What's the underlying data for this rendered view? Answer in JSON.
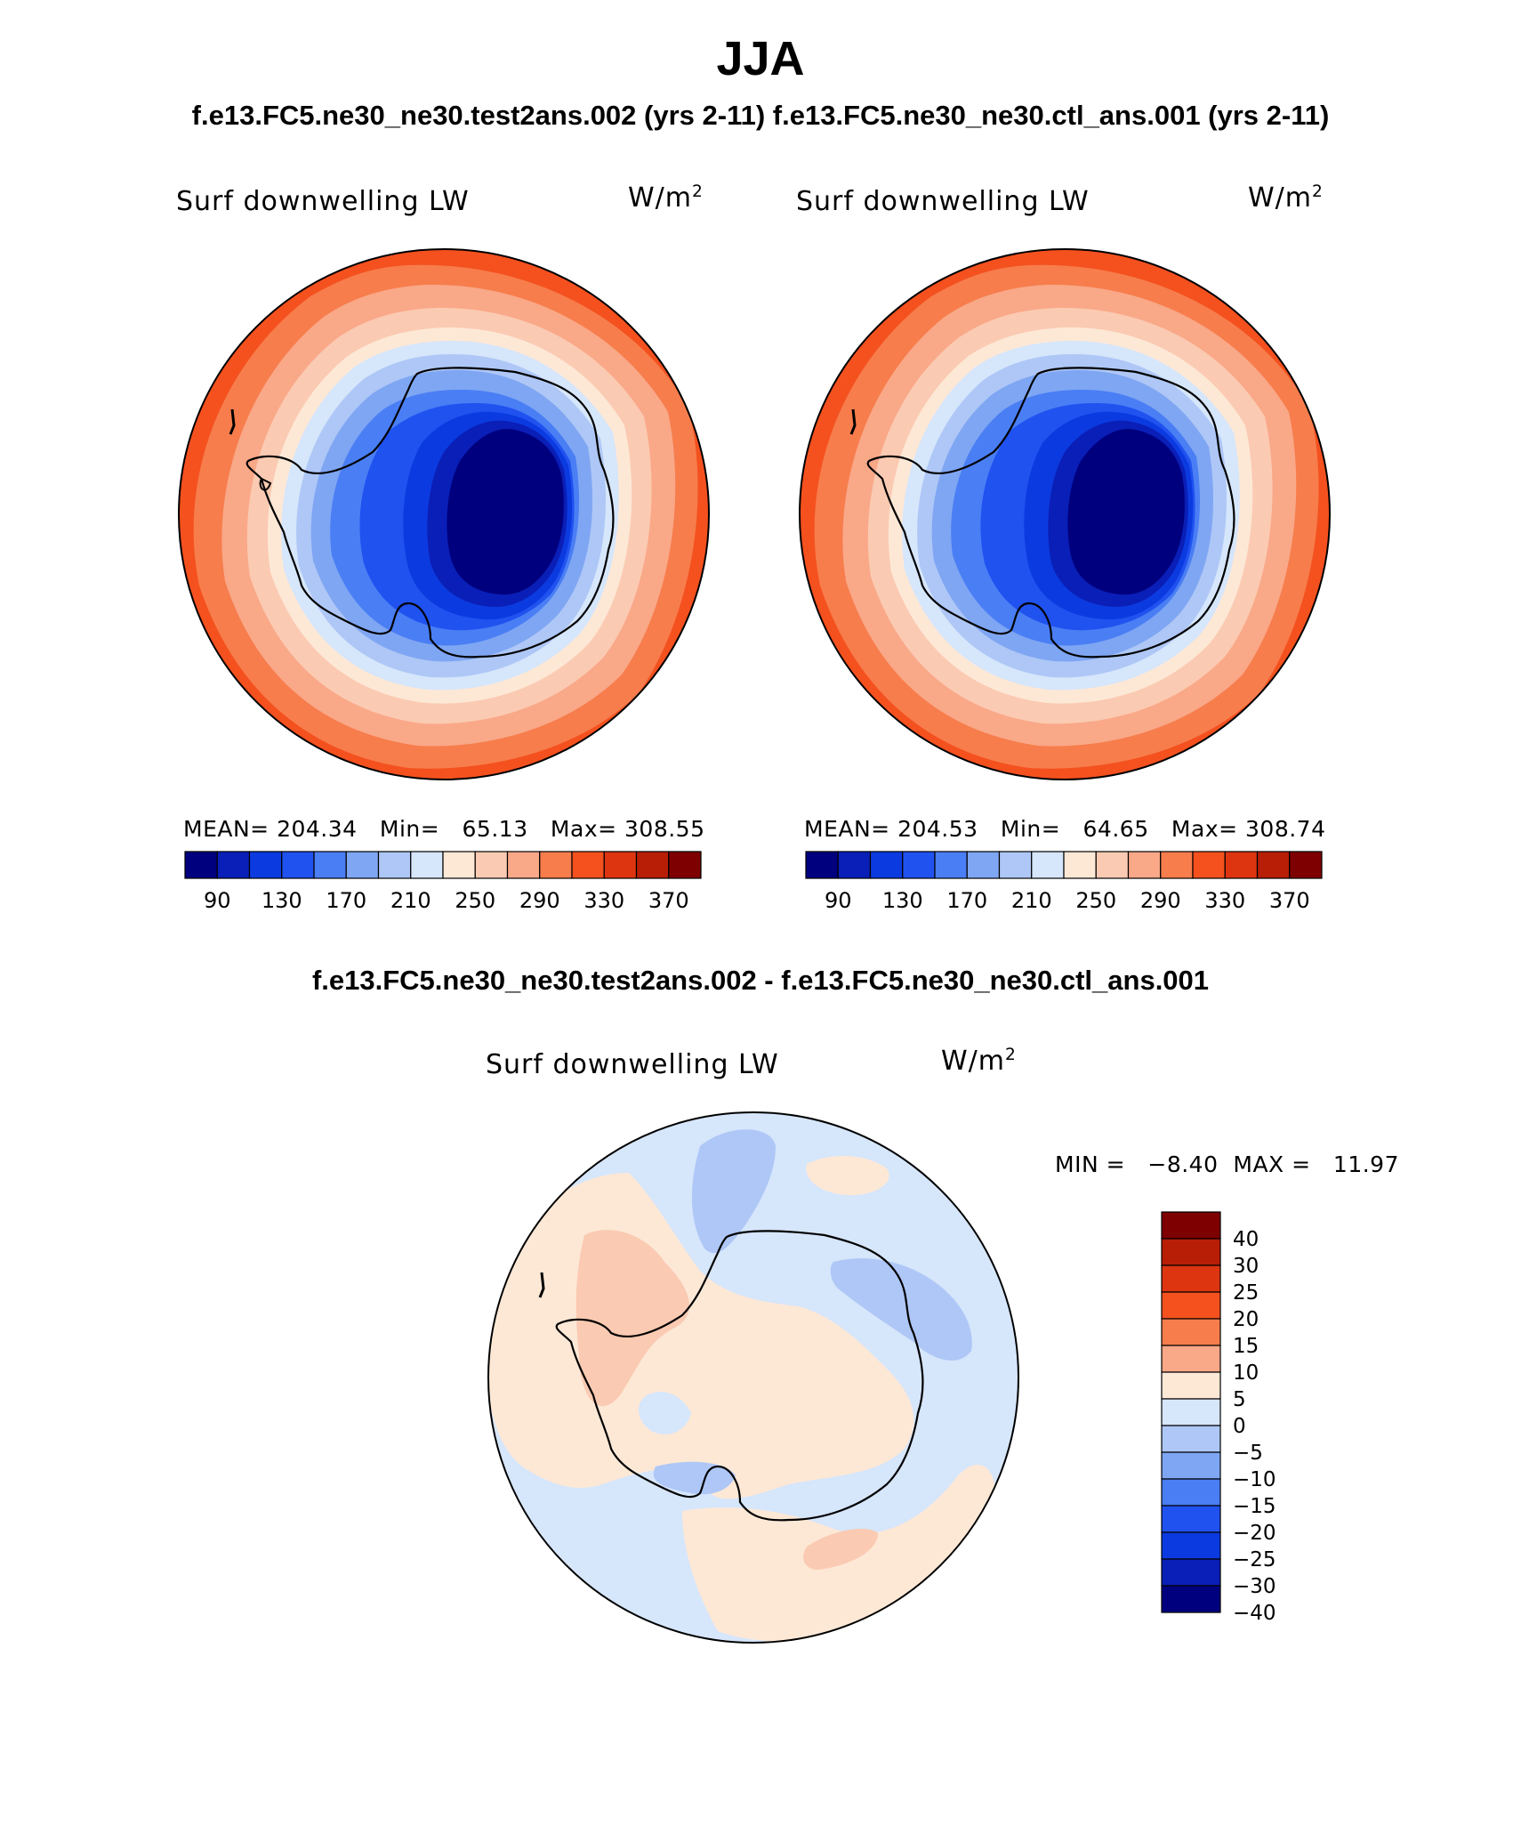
{
  "title": "JJA",
  "subtitle_top": "f.e13.FC5.ne30_ne30.test2ans.002 (yrs 2-11)   f.e13.FC5.ne30_ne30.ctl_ans.001 (yrs 2-11)",
  "subtitle_diff": "f.e13.FC5.ne30_ne30.test2ans.002 - f.e13.FC5.ne30_ne30.ctl_ans.001",
  "maps": [
    {
      "variable": "Surf downwelling LW",
      "units_base": "W/m",
      "units_exp": "2",
      "stats": "MEAN= 204.34   Min=   65.13   Max= 308.55"
    },
    {
      "variable": "Surf downwelling LW",
      "units_base": "W/m",
      "units_exp": "2",
      "stats": "MEAN= 204.53   Min=   64.65   Max= 308.74"
    }
  ],
  "diff_map": {
    "variable": "Surf downwelling LW",
    "units_base": "W/m",
    "units_exp": "2",
    "stats": "MIN =   −8.40  MAX =   11.97"
  },
  "chart_data": {
    "type": "heatmap",
    "projection": "south polar stereographic",
    "field_colorbar": {
      "orientation": "horizontal",
      "colors": [
        "#00007f",
        "#0a1fb7",
        "#0b3be0",
        "#2052f0",
        "#4a7ef4",
        "#7fa6f3",
        "#aec7f6",
        "#d6e6fb",
        "#fde8d6",
        "#fbcab2",
        "#f9a888",
        "#f77d4c",
        "#f4511f",
        "#dd3510",
        "#b71e05",
        "#7e0000"
      ],
      "tick_labels": [
        "90",
        "130",
        "170",
        "210",
        "250",
        "290",
        "330",
        "370"
      ]
    },
    "diff_colorbar": {
      "orientation": "vertical",
      "colors": [
        "#7e0000",
        "#b71e05",
        "#dd3510",
        "#f4511f",
        "#f77d4c",
        "#f9a888",
        "#fde8d6",
        "#d6e6fb",
        "#aec7f6",
        "#7fa6f3",
        "#4a7ef4",
        "#2052f0",
        "#0b3be0",
        "#0a1fb7",
        "#00007f"
      ],
      "tick_labels": [
        "40",
        "30",
        "25",
        "20",
        "15",
        "10",
        "5",
        "0",
        "−5",
        "−10",
        "−15",
        "−20",
        "−25",
        "−30",
        "−40"
      ]
    }
  }
}
